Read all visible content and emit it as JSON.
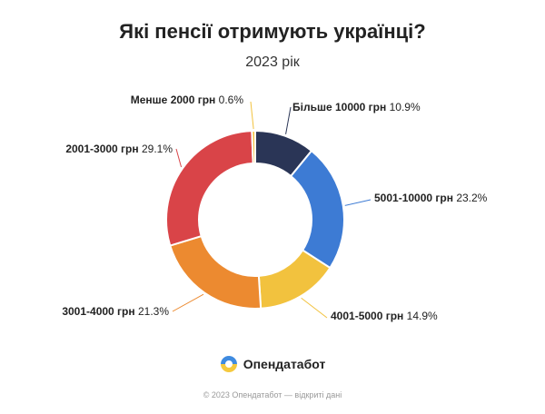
{
  "header": {
    "title": "Які пенсії отримують українці?",
    "subtitle": "2023 рік"
  },
  "brand": {
    "name": "Опендатабот",
    "logo_icon": "opendatabot-logo-icon"
  },
  "footer": {
    "text": "© 2023 Опендатабот — відкриті дані"
  },
  "chart_data": {
    "type": "pie",
    "variant": "donut",
    "title": "Які пенсії отримують українці?",
    "subtitle": "2023 рік",
    "unit": "%",
    "slices": [
      {
        "label": "Більше 10000 грн",
        "value": 10.9,
        "value_label": "10.9%",
        "color": "#2a3556"
      },
      {
        "label": "5001-10000 грн",
        "value": 23.2,
        "value_label": "23.2%",
        "color": "#3d7bd4"
      },
      {
        "label": "4001-5000 грн",
        "value": 14.9,
        "value_label": "14.9%",
        "color": "#f2c23e"
      },
      {
        "label": "3001-4000 грн",
        "value": 21.3,
        "value_label": "21.3%",
        "color": "#ec8a30"
      },
      {
        "label": "2001-3000 грн",
        "value": 29.1,
        "value_label": "29.1%",
        "color": "#d94448"
      },
      {
        "label": "Менше 2000 грн",
        "value": 0.6,
        "value_label": "0.6%",
        "color": "#f2c23e"
      }
    ]
  }
}
